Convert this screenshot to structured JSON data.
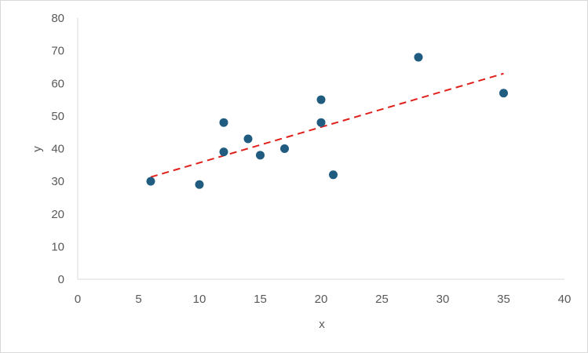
{
  "chart_data": {
    "type": "scatter",
    "title": "",
    "xlabel": "x",
    "ylabel": "y",
    "xlim": [
      0,
      40
    ],
    "ylim": [
      0,
      80
    ],
    "xticks": [
      0,
      5,
      10,
      15,
      20,
      25,
      30,
      35,
      40
    ],
    "yticks": [
      0,
      10,
      20,
      30,
      40,
      50,
      60,
      70,
      80
    ],
    "grid": false,
    "legend": "none",
    "series": [
      {
        "color": "#1f5c80",
        "points": [
          {
            "x": 6,
            "y": 30
          },
          {
            "x": 10,
            "y": 29
          },
          {
            "x": 12,
            "y": 48
          },
          {
            "x": 12,
            "y": 39
          },
          {
            "x": 14,
            "y": 43
          },
          {
            "x": 15,
            "y": 38
          },
          {
            "x": 17,
            "y": 40
          },
          {
            "x": 20,
            "y": 55
          },
          {
            "x": 20,
            "y": 48
          },
          {
            "x": 21,
            "y": 32
          },
          {
            "x": 28,
            "y": 68
          },
          {
            "x": 35,
            "y": 57
          }
        ]
      }
    ],
    "trendline": {
      "type": "linear",
      "color": "#e0201b",
      "style": "dashed",
      "from": {
        "x": 6,
        "y": 31.3
      },
      "to": {
        "x": 35,
        "y": 63
      }
    }
  }
}
